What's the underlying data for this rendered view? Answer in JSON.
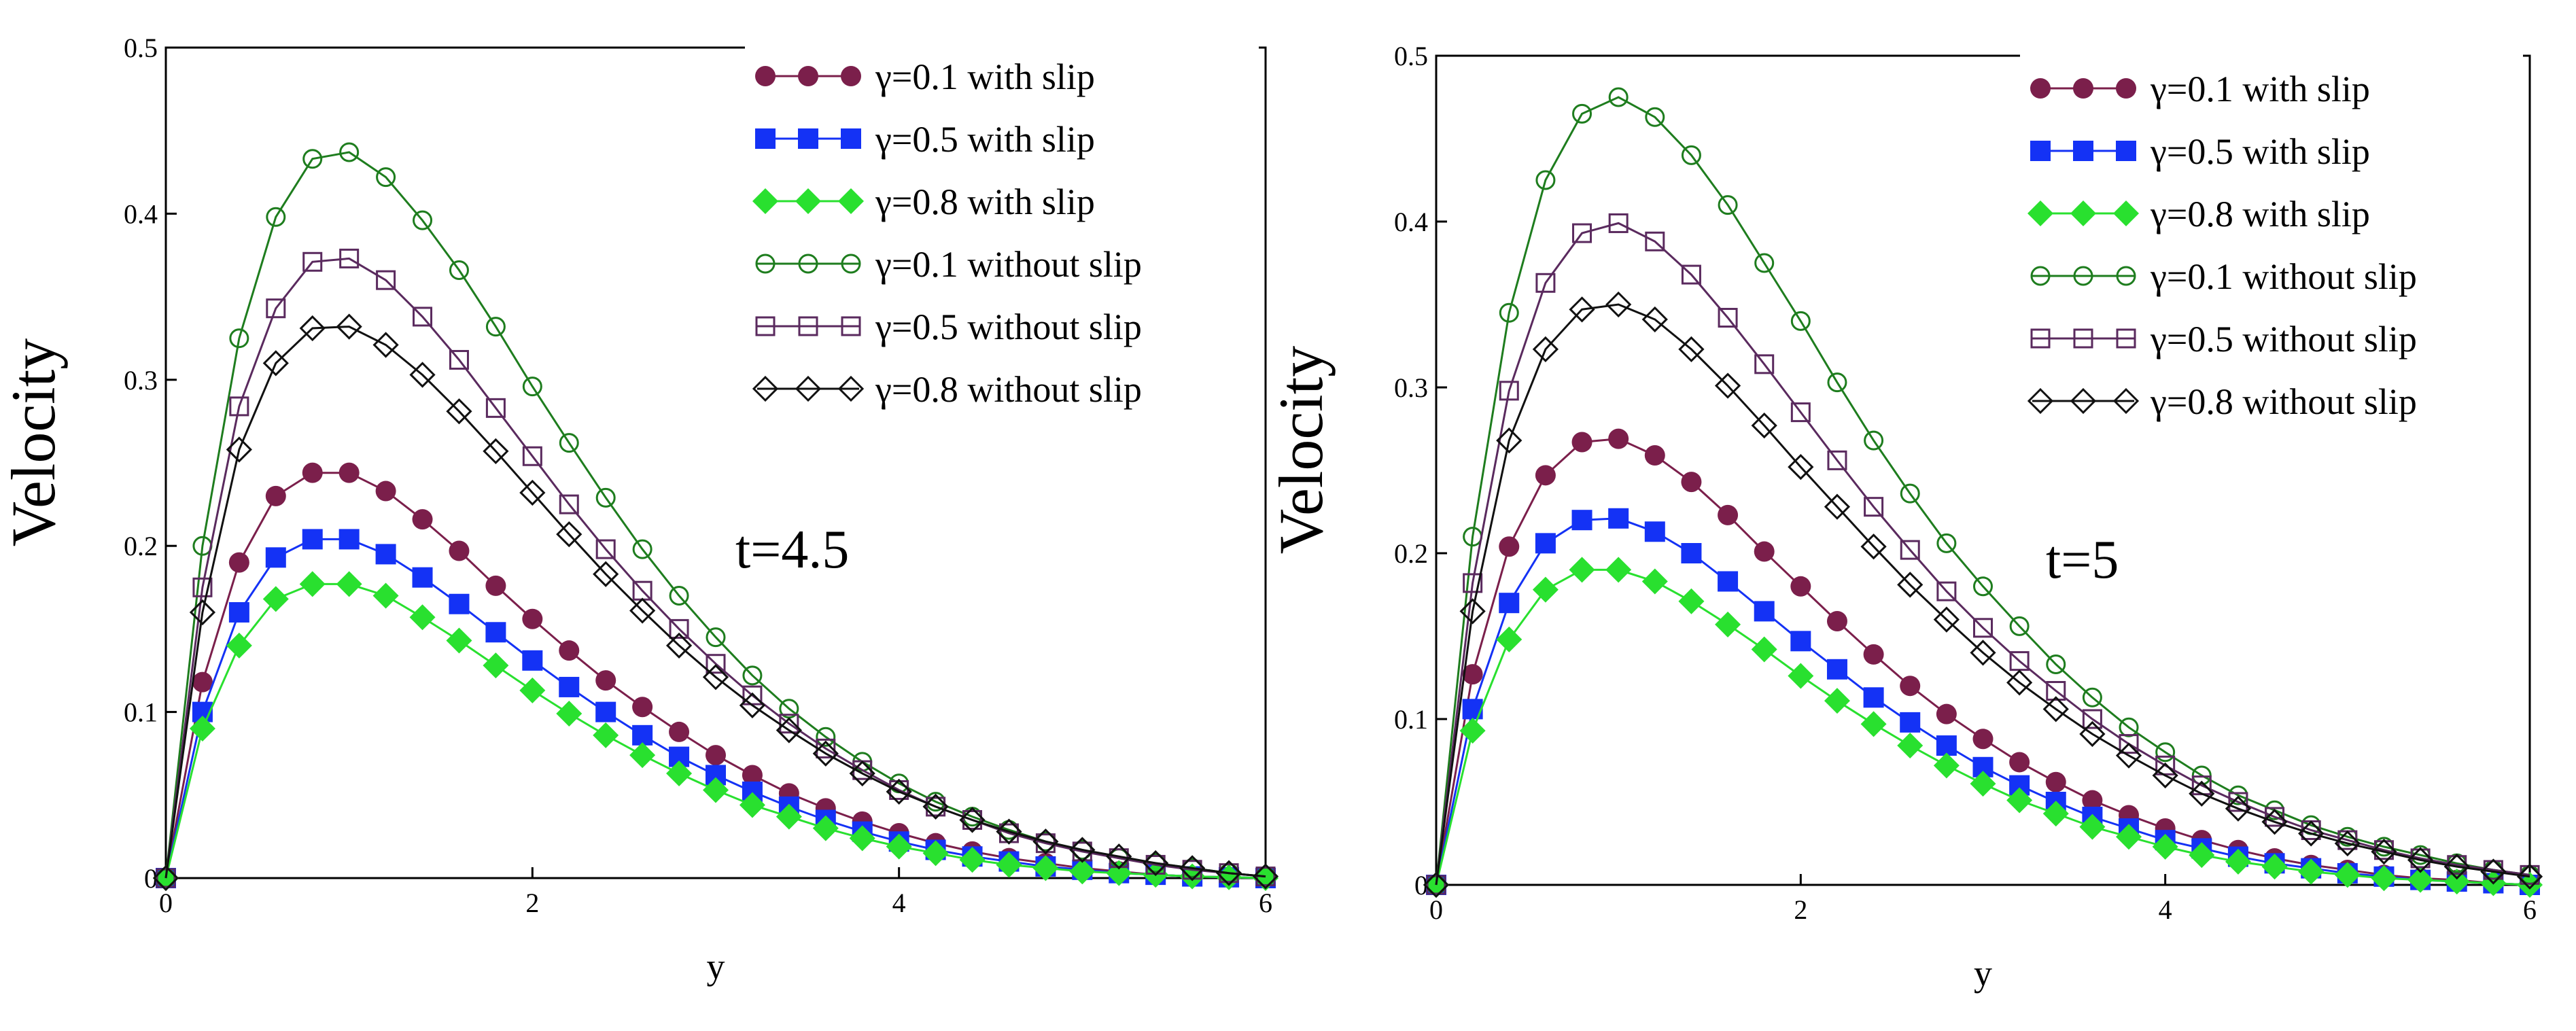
{
  "chart_data": [
    {
      "type": "line",
      "title": "",
      "annotation": "t=4.5",
      "xlabel": "y",
      "ylabel": "Velocity",
      "xlim": [
        0,
        6
      ],
      "ylim": [
        0,
        0.5
      ],
      "x_ticks": [
        "0",
        "2",
        "4",
        "6"
      ],
      "y_ticks": [
        "0",
        "0.1",
        "0.2",
        "0.3",
        "0.4",
        "0.5"
      ],
      "x": [
        0,
        0.2,
        0.4,
        0.6,
        0.8,
        1.0,
        1.2,
        1.4,
        1.6,
        1.8,
        2.0,
        2.2,
        2.4,
        2.6,
        2.8,
        3.0,
        3.2,
        3.4,
        3.6,
        3.8,
        4.0,
        4.2,
        4.4,
        4.6,
        4.8,
        5.0,
        5.2,
        5.4,
        5.6,
        5.8,
        6.0
      ],
      "legend_position": "top-right",
      "series": [
        {
          "name": "γ=0.1 with slip",
          "color": "#7b1f4b",
          "marker": "circle-filled",
          "values": [
            0,
            0.118,
            0.19,
            0.23,
            0.244,
            0.244,
            0.233,
            0.216,
            0.197,
            0.176,
            0.156,
            0.137,
            0.119,
            0.103,
            0.088,
            0.074,
            0.062,
            0.051,
            0.042,
            0.034,
            0.027,
            0.021,
            0.016,
            0.012,
            0.009,
            0.006,
            0.004,
            0.002,
            0.001,
            0.0005,
            0
          ]
        },
        {
          "name": "γ=0.5 with slip",
          "color": "#1432f5",
          "marker": "square-filled",
          "values": [
            0,
            0.1,
            0.16,
            0.193,
            0.204,
            0.204,
            0.195,
            0.181,
            0.165,
            0.148,
            0.131,
            0.115,
            0.1,
            0.086,
            0.073,
            0.062,
            0.052,
            0.043,
            0.035,
            0.028,
            0.022,
            0.017,
            0.013,
            0.01,
            0.007,
            0.005,
            0.003,
            0.002,
            0.001,
            0.0005,
            0
          ]
        },
        {
          "name": "γ=0.8 with slip",
          "color": "#29e02f",
          "marker": "diamond-filled",
          "values": [
            0,
            0.09,
            0.14,
            0.168,
            0.177,
            0.177,
            0.17,
            0.157,
            0.143,
            0.128,
            0.113,
            0.099,
            0.086,
            0.074,
            0.063,
            0.053,
            0.044,
            0.037,
            0.03,
            0.024,
            0.019,
            0.015,
            0.011,
            0.008,
            0.006,
            0.004,
            0.003,
            0.002,
            0.001,
            0.0005,
            0
          ]
        },
        {
          "name": "γ=0.1 without slip",
          "color": "#1e7d1e",
          "marker": "circle-open",
          "values": [
            0,
            0.2,
            0.325,
            0.398,
            0.433,
            0.437,
            0.422,
            0.396,
            0.366,
            0.332,
            0.296,
            0.262,
            0.229,
            0.198,
            0.17,
            0.145,
            0.122,
            0.102,
            0.085,
            0.07,
            0.057,
            0.046,
            0.037,
            0.029,
            0.022,
            0.017,
            0.012,
            0.009,
            0.006,
            0.003,
            0.001
          ]
        },
        {
          "name": "γ=0.5 without slip",
          "color": "#5a2a5e",
          "marker": "square-open",
          "values": [
            0,
            0.175,
            0.284,
            0.343,
            0.371,
            0.373,
            0.36,
            0.338,
            0.312,
            0.283,
            0.254,
            0.225,
            0.198,
            0.173,
            0.15,
            0.129,
            0.11,
            0.093,
            0.078,
            0.065,
            0.053,
            0.043,
            0.035,
            0.027,
            0.021,
            0.016,
            0.012,
            0.008,
            0.005,
            0.003,
            0.001
          ]
        },
        {
          "name": "γ=0.8 without slip",
          "color": "#111111",
          "marker": "diamond-open",
          "values": [
            0,
            0.16,
            0.258,
            0.31,
            0.331,
            0.332,
            0.321,
            0.303,
            0.281,
            0.257,
            0.232,
            0.207,
            0.183,
            0.161,
            0.14,
            0.121,
            0.104,
            0.089,
            0.075,
            0.063,
            0.052,
            0.043,
            0.035,
            0.028,
            0.022,
            0.017,
            0.013,
            0.009,
            0.006,
            0.003,
            0.001
          ]
        }
      ]
    },
    {
      "type": "line",
      "title": "",
      "annotation": "t=5",
      "xlabel": "y",
      "ylabel": "Velocity",
      "xlim": [
        0,
        6
      ],
      "ylim": [
        0,
        0.5
      ],
      "x_ticks": [
        "0",
        "2",
        "4",
        "6"
      ],
      "y_ticks": [
        "0",
        "0.1",
        "0.2",
        "0.3",
        "0.4",
        "0.5"
      ],
      "x": [
        0,
        0.2,
        0.4,
        0.6,
        0.8,
        1.0,
        1.2,
        1.4,
        1.6,
        1.8,
        2.0,
        2.2,
        2.4,
        2.6,
        2.8,
        3.0,
        3.2,
        3.4,
        3.6,
        3.8,
        4.0,
        4.2,
        4.4,
        4.6,
        4.8,
        5.0,
        5.2,
        5.4,
        5.6,
        5.8,
        6.0
      ],
      "legend_position": "top-right",
      "series": [
        {
          "name": "γ=0.1 with slip",
          "color": "#7b1f4b",
          "marker": "circle-filled",
          "values": [
            0,
            0.127,
            0.204,
            0.247,
            0.267,
            0.269,
            0.259,
            0.243,
            0.223,
            0.201,
            0.18,
            0.159,
            0.139,
            0.12,
            0.103,
            0.088,
            0.074,
            0.062,
            0.051,
            0.042,
            0.034,
            0.027,
            0.021,
            0.016,
            0.012,
            0.009,
            0.006,
            0.004,
            0.003,
            0.001,
            0
          ]
        },
        {
          "name": "γ=0.5 with slip",
          "color": "#1432f5",
          "marker": "square-filled",
          "values": [
            0,
            0.106,
            0.17,
            0.206,
            0.22,
            0.221,
            0.213,
            0.2,
            0.183,
            0.165,
            0.147,
            0.13,
            0.113,
            0.098,
            0.084,
            0.071,
            0.06,
            0.05,
            0.041,
            0.034,
            0.027,
            0.022,
            0.017,
            0.013,
            0.01,
            0.007,
            0.005,
            0.003,
            0.002,
            0.001,
            0
          ]
        },
        {
          "name": "γ=0.8 with slip",
          "color": "#29e02f",
          "marker": "diamond-filled",
          "values": [
            0,
            0.093,
            0.148,
            0.178,
            0.19,
            0.19,
            0.183,
            0.171,
            0.157,
            0.142,
            0.126,
            0.111,
            0.097,
            0.084,
            0.072,
            0.061,
            0.051,
            0.043,
            0.035,
            0.029,
            0.023,
            0.018,
            0.014,
            0.011,
            0.008,
            0.006,
            0.004,
            0.003,
            0.002,
            0.001,
            0
          ]
        },
        {
          "name": "γ=0.1 without slip",
          "color": "#1e7d1e",
          "marker": "circle-open",
          "values": [
            0,
            0.21,
            0.345,
            0.425,
            0.465,
            0.475,
            0.463,
            0.44,
            0.41,
            0.375,
            0.34,
            0.303,
            0.268,
            0.236,
            0.206,
            0.18,
            0.156,
            0.133,
            0.113,
            0.095,
            0.08,
            0.066,
            0.054,
            0.045,
            0.036,
            0.029,
            0.023,
            0.018,
            0.013,
            0.009,
            0.006
          ]
        },
        {
          "name": "γ=0.5 without slip",
          "color": "#5a2a5e",
          "marker": "square-open",
          "values": [
            0,
            0.182,
            0.298,
            0.363,
            0.393,
            0.399,
            0.388,
            0.368,
            0.342,
            0.314,
            0.285,
            0.256,
            0.228,
            0.202,
            0.177,
            0.155,
            0.135,
            0.117,
            0.1,
            0.085,
            0.072,
            0.06,
            0.05,
            0.041,
            0.033,
            0.027,
            0.021,
            0.016,
            0.012,
            0.009,
            0.006
          ]
        },
        {
          "name": "γ=0.8 without slip",
          "color": "#111111",
          "marker": "diamond-open",
          "values": [
            0,
            0.165,
            0.268,
            0.323,
            0.347,
            0.35,
            0.341,
            0.323,
            0.301,
            0.277,
            0.252,
            0.228,
            0.204,
            0.181,
            0.16,
            0.14,
            0.122,
            0.106,
            0.091,
            0.078,
            0.066,
            0.055,
            0.046,
            0.038,
            0.031,
            0.025,
            0.02,
            0.015,
            0.011,
            0.008,
            0.005
          ]
        }
      ]
    }
  ]
}
